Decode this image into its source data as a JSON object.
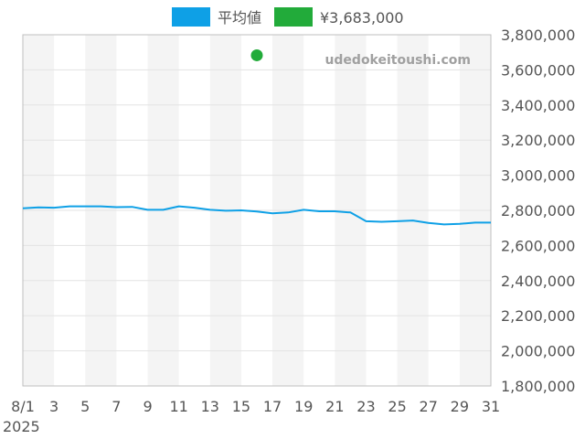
{
  "chart_data": {
    "type": "line",
    "watermark": "udedokeitoushi.com",
    "x_ticks": [
      "8/1",
      "3",
      "5",
      "7",
      "9",
      "11",
      "13",
      "15",
      "17",
      "19",
      "21",
      "23",
      "25",
      "27",
      "29",
      "31"
    ],
    "x_year_label": "2025",
    "y_ticks": [
      "1,800,000",
      "2,000,000",
      "2,200,000",
      "2,400,000",
      "2,600,000",
      "2,800,000",
      "3,000,000",
      "3,200,000",
      "3,400,000",
      "3,600,000",
      "3,800,000"
    ],
    "xlim": [
      1,
      31
    ],
    "ylim": [
      1800000,
      3800000
    ],
    "grid": true,
    "legend_position": "top-center",
    "series": [
      {
        "name": "平均値",
        "color": "#0ea0e6",
        "kind": "line",
        "x": [
          1,
          2,
          3,
          4,
          5,
          6,
          7,
          8,
          9,
          10,
          11,
          12,
          13,
          14,
          15,
          16,
          17,
          18,
          19,
          20,
          21,
          22,
          23,
          24,
          25,
          26,
          27,
          28,
          29,
          30,
          31
        ],
        "values": [
          2812000,
          2817000,
          2815000,
          2823000,
          2823000,
          2823000,
          2818000,
          2820000,
          2803000,
          2803000,
          2823000,
          2815000,
          2803000,
          2798000,
          2800000,
          2793000,
          2783000,
          2788000,
          2803000,
          2795000,
          2795000,
          2788000,
          2738000,
          2735000,
          2738000,
          2742000,
          2728000,
          2720000,
          2723000,
          2730000,
          2730000
        ]
      },
      {
        "name": "¥3,683,000",
        "color": "#22ab3a",
        "kind": "point",
        "x": [
          16
        ],
        "values": [
          3683000
        ]
      }
    ]
  }
}
